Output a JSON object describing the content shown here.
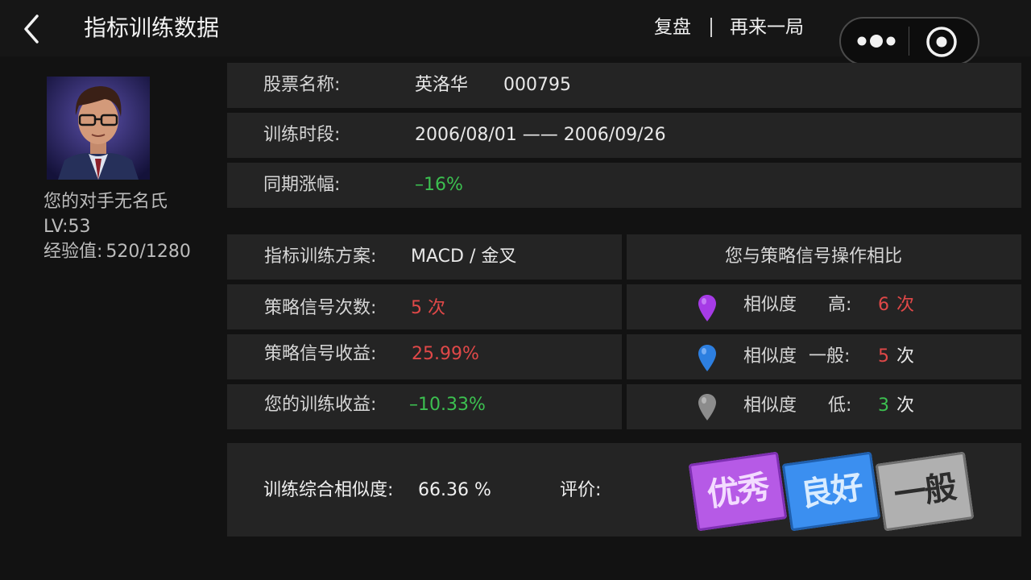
{
  "header": {
    "title": "指标训练数据",
    "review_label": "复盘",
    "again_label": "再来一局",
    "back_icon": "chevron-left-icon",
    "more_icon": "more-dots-icon",
    "target_icon": "target-icon"
  },
  "player": {
    "name_line": "您的对手无名氏",
    "level": "LV:53",
    "exp_label": "经验值:",
    "exp_value": "520/1280"
  },
  "stock": {
    "name_label": "股票名称:",
    "name": "英洛华",
    "code": "000795",
    "period_label": "训练时段:",
    "period": "2006/08/01 —— 2006/09/26",
    "change_label": "同期涨幅:",
    "change": "–16%"
  },
  "strategy": {
    "plan_label": "指标训练方案:",
    "plan": "MACD / 金叉",
    "signal_count_label": "策略信号次数:",
    "signal_count": "5 次",
    "signal_return_label": "策略信号收益:",
    "signal_return": "25.99%",
    "your_return_label": "您的训练收益:",
    "your_return": "–10.33%"
  },
  "comparison": {
    "header": "您与策略信号操作相比",
    "rows": [
      {
        "label": "相似度",
        "level": "高:",
        "count": "6",
        "unit": "次",
        "pin_color": "#a63be6"
      },
      {
        "label": "相似度",
        "level": "一般:",
        "count": "5",
        "unit": "次",
        "pin_color": "#2d7fe0"
      },
      {
        "label": "相似度",
        "level": "低:",
        "count": "3",
        "unit": "次",
        "pin_color": "#8c8c8c"
      }
    ]
  },
  "summary": {
    "similarity_label": "训练综合相似度:",
    "similarity_value": "66.36 %",
    "rating_label": "评价:",
    "ratings": [
      "优秀",
      "良好",
      "一般"
    ],
    "rating_colors": [
      "#b65ae6",
      "#3b8ff0",
      "#b0b0b0"
    ]
  },
  "colors": {
    "negative": "#3cc050",
    "positive": "#e04848",
    "card_bg": "#242424",
    "page_bg": "#121212"
  }
}
